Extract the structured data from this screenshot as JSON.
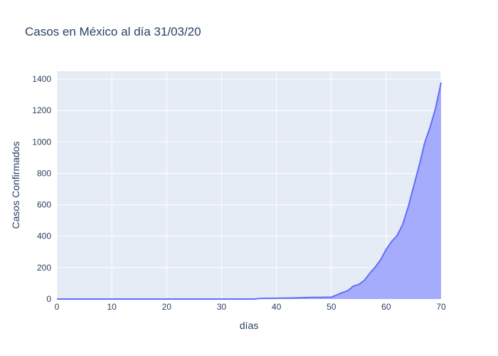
{
  "chart_data": {
    "type": "area",
    "title": "Casos en México al día 31/03/20",
    "xlabel": "días",
    "ylabel": "Casos Confirmados",
    "xlim": [
      0,
      70
    ],
    "ylim": [
      0,
      1450
    ],
    "x_ticks": [
      0,
      10,
      20,
      30,
      40,
      50,
      60,
      70
    ],
    "y_ticks": [
      0,
      200,
      400,
      600,
      800,
      1000,
      1200,
      1400
    ],
    "grid": true,
    "legend": false,
    "series": [
      {
        "x": [
          0,
          36,
          37,
          40,
          43,
          46,
          48,
          50,
          51,
          52,
          53,
          54,
          55,
          56,
          57,
          58,
          59,
          60,
          61,
          62,
          63,
          64,
          65,
          66,
          67,
          68,
          69,
          70
        ],
        "y": [
          0,
          0,
          4,
          5,
          7,
          10,
          11,
          12,
          26,
          41,
          53,
          82,
          93,
          118,
          164,
          203,
          251,
          316,
          367,
          405,
          475,
          585,
          717,
          848,
          993,
          1094,
          1215,
          1378
        ],
        "color": "#636efa",
        "fill": "#a5acfc"
      }
    ],
    "colors": {
      "plot_bg": "#e5ecf6",
      "grid": "#ffffff",
      "text": "#2a3f5f"
    }
  }
}
